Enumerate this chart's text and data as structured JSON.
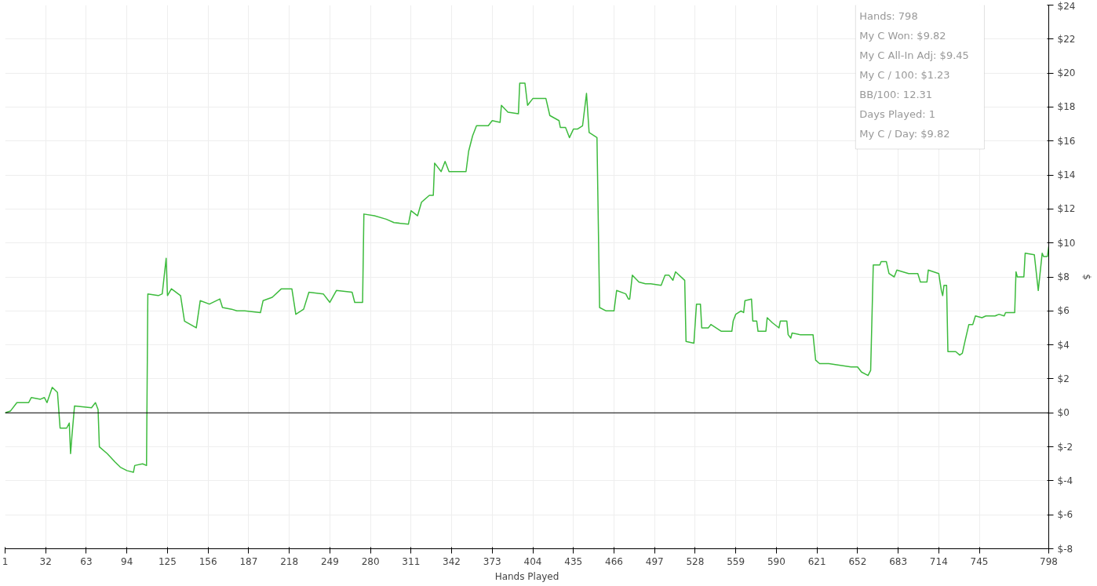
{
  "chart_data": {
    "type": "line",
    "xlabel": "Hands Played",
    "ylabel": "$",
    "annotations": [
      "Hands: 798",
      "My C Won: $9.82",
      "My C All-In Adj: $9.45",
      "My C / 100: $1.23",
      "BB/100: 12.31",
      "Days Played: 1",
      "My C / Day: $9.82"
    ],
    "x": [
      1,
      5,
      10,
      19,
      21,
      28,
      31,
      33,
      37,
      41,
      43,
      48,
      50,
      51,
      52,
      54,
      67,
      70,
      72,
      73,
      79,
      85,
      89,
      94,
      99,
      100,
      106,
      109,
      110,
      118,
      121,
      124,
      125,
      128,
      135,
      138,
      147,
      150,
      157,
      165,
      167,
      174,
      178,
      184,
      196,
      198,
      205,
      212,
      220,
      223,
      229,
      233,
      244,
      249,
      254,
      266,
      268,
      274,
      275,
      283,
      292,
      298,
      309,
      311,
      316,
      319,
      325,
      328,
      329,
      334,
      337,
      340,
      353,
      355,
      358,
      361,
      370,
      373,
      379,
      380,
      385,
      393,
      394,
      398,
      400,
      404,
      414,
      417,
      424,
      425,
      429,
      432,
      435,
      438,
      442,
      445,
      447,
      453,
      455,
      460,
      466,
      468,
      475,
      477,
      478,
      480,
      485,
      490,
      494,
      502,
      505,
      508,
      511,
      513,
      520,
      521,
      527,
      529,
      532,
      533,
      538,
      540,
      548,
      556,
      557,
      559,
      563,
      565,
      566,
      571,
      572,
      575,
      576,
      582,
      583,
      587,
      592,
      593,
      598,
      599,
      601,
      602,
      608,
      610,
      618,
      620,
      623,
      630,
      638,
      647,
      652,
      655,
      660,
      662,
      664,
      669,
      670,
      674,
      676,
      680,
      682,
      691,
      698,
      700,
      705,
      706,
      714,
      716,
      717,
      718,
      720,
      721,
      727,
      730,
      732,
      734,
      737,
      740,
      742,
      747,
      750,
      757,
      760,
      764,
      765,
      772,
      773,
      774,
      779,
      780,
      787,
      790,
      793,
      794,
      797,
      798
    ],
    "series": [
      {
        "color": "#3dbb3d",
        "values": [
          0,
          0.1,
          0.6,
          0.6,
          0.9,
          0.8,
          0.9,
          0.6,
          1.5,
          1.2,
          -0.9,
          -0.9,
          -0.6,
          -2.4,
          -1.4,
          0.4,
          0.3,
          0.6,
          0.2,
          -2.0,
          -2.4,
          -2.9,
          -3.2,
          -3.4,
          -3.5,
          -3.1,
          -3.0,
          -3.1,
          7.0,
          6.9,
          7.0,
          9.1,
          6.9,
          7.3,
          6.9,
          5.4,
          5.0,
          6.6,
          6.4,
          6.7,
          6.2,
          6.1,
          6.0,
          6.0,
          5.9,
          6.6,
          6.8,
          7.3,
          7.3,
          5.8,
          6.1,
          7.1,
          7.0,
          6.5,
          7.2,
          7.1,
          6.5,
          6.5,
          11.7,
          11.6,
          11.4,
          11.2,
          11.1,
          11.9,
          11.6,
          12.4,
          12.8,
          12.8,
          14.7,
          14.2,
          14.8,
          14.2,
          14.2,
          15.4,
          16.3,
          16.9,
          16.9,
          17.2,
          17.1,
          18.1,
          17.7,
          17.6,
          19.4,
          19.4,
          18.1,
          18.5,
          18.5,
          17.5,
          17.2,
          16.8,
          16.8,
          16.2,
          16.7,
          16.7,
          16.9,
          18.8,
          16.5,
          16.2,
          6.2,
          6.0,
          6.0,
          7.2,
          7.0,
          6.7,
          6.7,
          8.1,
          7.7,
          7.6,
          7.6,
          7.5,
          8.1,
          8.1,
          7.8,
          8.3,
          7.8,
          4.2,
          4.1,
          6.4,
          6.4,
          5.0,
          5.0,
          5.2,
          4.8,
          4.8,
          5.4,
          5.8,
          6.0,
          5.9,
          6.6,
          6.7,
          5.4,
          5.4,
          4.8,
          4.8,
          5.6,
          5.3,
          5.0,
          5.4,
          5.4,
          4.6,
          4.4,
          4.7,
          4.6,
          4.6,
          4.6,
          3.1,
          2.9,
          2.9,
          2.8,
          2.7,
          2.7,
          2.4,
          2.2,
          2.5,
          8.7,
          8.7,
          8.9,
          8.9,
          8.2,
          8.0,
          8.4,
          8.2,
          8.2,
          7.7,
          7.7,
          8.4,
          8.2,
          7.2,
          6.9,
          7.5,
          7.5,
          3.6,
          3.6,
          3.4,
          3.5,
          4.2,
          5.2,
          5.2,
          5.7,
          5.6,
          5.7,
          5.7,
          5.8,
          5.7,
          5.9,
          5.9,
          8.3,
          8.0,
          8.0,
          9.4,
          9.3,
          7.2,
          9.4,
          9.2,
          9.2,
          9.8
        ]
      }
    ],
    "xlim": [
      1,
      798
    ],
    "xticks": [
      1,
      32,
      63,
      94,
      125,
      156,
      187,
      218,
      249,
      280,
      311,
      342,
      373,
      404,
      435,
      466,
      497,
      528,
      559,
      590,
      621,
      652,
      683,
      714,
      745,
      798
    ],
    "ylim": [
      -8,
      24
    ],
    "yticks": [
      {
        "value": -8,
        "label": "$-8"
      },
      {
        "value": -6,
        "label": "$-6"
      },
      {
        "value": -4,
        "label": "$-4"
      },
      {
        "value": -2,
        "label": "$-2"
      },
      {
        "value": 0,
        "label": "$0"
      },
      {
        "value": 2,
        "label": "$2"
      },
      {
        "value": 4,
        "label": "$4"
      },
      {
        "value": 6,
        "label": "$6"
      },
      {
        "value": 8,
        "label": "$8"
      },
      {
        "value": 10,
        "label": "$10"
      },
      {
        "value": 12,
        "label": "$12"
      },
      {
        "value": 14,
        "label": "$14"
      },
      {
        "value": 16,
        "label": "$16"
      },
      {
        "value": 18,
        "label": "$18"
      },
      {
        "value": 20,
        "label": "$20"
      },
      {
        "value": 22,
        "label": "$22"
      },
      {
        "value": 24,
        "label": "$24"
      }
    ],
    "ref_lines": [
      {
        "axis": "y",
        "value": 0,
        "color": "#000000"
      }
    ],
    "grid": true
  }
}
